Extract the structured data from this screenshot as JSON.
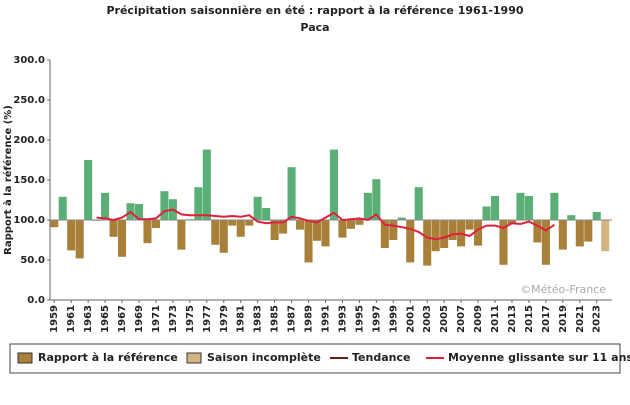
{
  "chart_data": {
    "type": "bar",
    "title": "Précipitation saisonnière en été : rapport à la référence 1961-1990",
    "subtitle": "Paca",
    "y_label": "Rapport à la référence (%)",
    "credit": "©Météo-France",
    "baseline": 100,
    "x": [
      1959,
      1960,
      1961,
      1962,
      1963,
      1964,
      1965,
      1966,
      1967,
      1968,
      1969,
      1970,
      1971,
      1972,
      1973,
      1974,
      1975,
      1976,
      1977,
      1978,
      1979,
      1980,
      1981,
      1982,
      1983,
      1984,
      1985,
      1986,
      1987,
      1988,
      1989,
      1990,
      1991,
      1992,
      1993,
      1994,
      1995,
      1996,
      1997,
      1998,
      1999,
      2000,
      2001,
      2002,
      2003,
      2004,
      2005,
      2006,
      2007,
      2008,
      2009,
      2010,
      2011,
      2012,
      2013,
      2014,
      2015,
      2016,
      2017,
      2018,
      2019,
      2020,
      2021,
      2022,
      2023,
      2024
    ],
    "xlim": [
      1958.5,
      2024.8
    ],
    "xticks": [
      1959,
      1961,
      1963,
      1965,
      1967,
      1969,
      1971,
      1973,
      1975,
      1977,
      1979,
      1981,
      1983,
      1985,
      1987,
      1989,
      1991,
      1993,
      1995,
      1997,
      1999,
      2001,
      2003,
      2005,
      2007,
      2009,
      2011,
      2013,
      2015,
      2017,
      2019,
      2021,
      2023
    ],
    "ylim": [
      0,
      300
    ],
    "yticks": [
      {
        "value": 0,
        "label": "0.0"
      },
      {
        "value": 50,
        "label": "50.0"
      },
      {
        "value": 100,
        "label": "100.0"
      },
      {
        "value": 150,
        "label": "150.0"
      },
      {
        "value": 200,
        "label": "200.0"
      },
      {
        "value": 250,
        "label": "250.0"
      },
      {
        "value": 300,
        "label": "300.0"
      }
    ],
    "series": [
      {
        "name": "Rapport à la référence",
        "type": "bar",
        "color": "#a8803a",
        "color_above": "#5aaf76",
        "values": [
          91,
          129,
          62,
          52,
          175,
          99,
          134,
          79,
          54,
          121,
          120,
          71,
          90,
          136,
          126,
          63,
          101,
          141,
          188,
          69,
          59,
          93,
          79,
          93,
          129,
          115,
          75,
          83,
          166,
          88,
          47,
          74,
          67,
          188,
          78,
          89,
          94,
          134,
          151,
          65,
          75,
          103,
          47,
          141,
          43,
          61,
          65,
          75,
          67,
          88,
          68,
          117,
          130,
          44,
          95,
          134,
          130,
          72,
          44,
          134,
          63,
          106,
          67,
          73,
          110,
          null
        ]
      },
      {
        "name": "Saison incomplète",
        "type": "bar",
        "color": "#d4b483",
        "x": [
          2024
        ],
        "values": [
          61
        ]
      },
      {
        "name": "Tendance",
        "type": "line",
        "color": "#6b1b12"
      },
      {
        "name": "Moyenne glissante sur 11 ans",
        "type": "line",
        "color": "#e0203a",
        "values": [
          null,
          null,
          null,
          null,
          null,
          103,
          102,
          100,
          103,
          110,
          101,
          101,
          102,
          111,
          113,
          107,
          106,
          106,
          106,
          105,
          104,
          105,
          104,
          106,
          98,
          96,
          97,
          97,
          104,
          102,
          99,
          97,
          103,
          109,
          100,
          101,
          102,
          100,
          107,
          94,
          93,
          91,
          89,
          85,
          78,
          76,
          78,
          82,
          83,
          80,
          88,
          93,
          93,
          90,
          96,
          95,
          98,
          93,
          87,
          94,
          null,
          null,
          null,
          null,
          null,
          null
        ]
      }
    ]
  }
}
